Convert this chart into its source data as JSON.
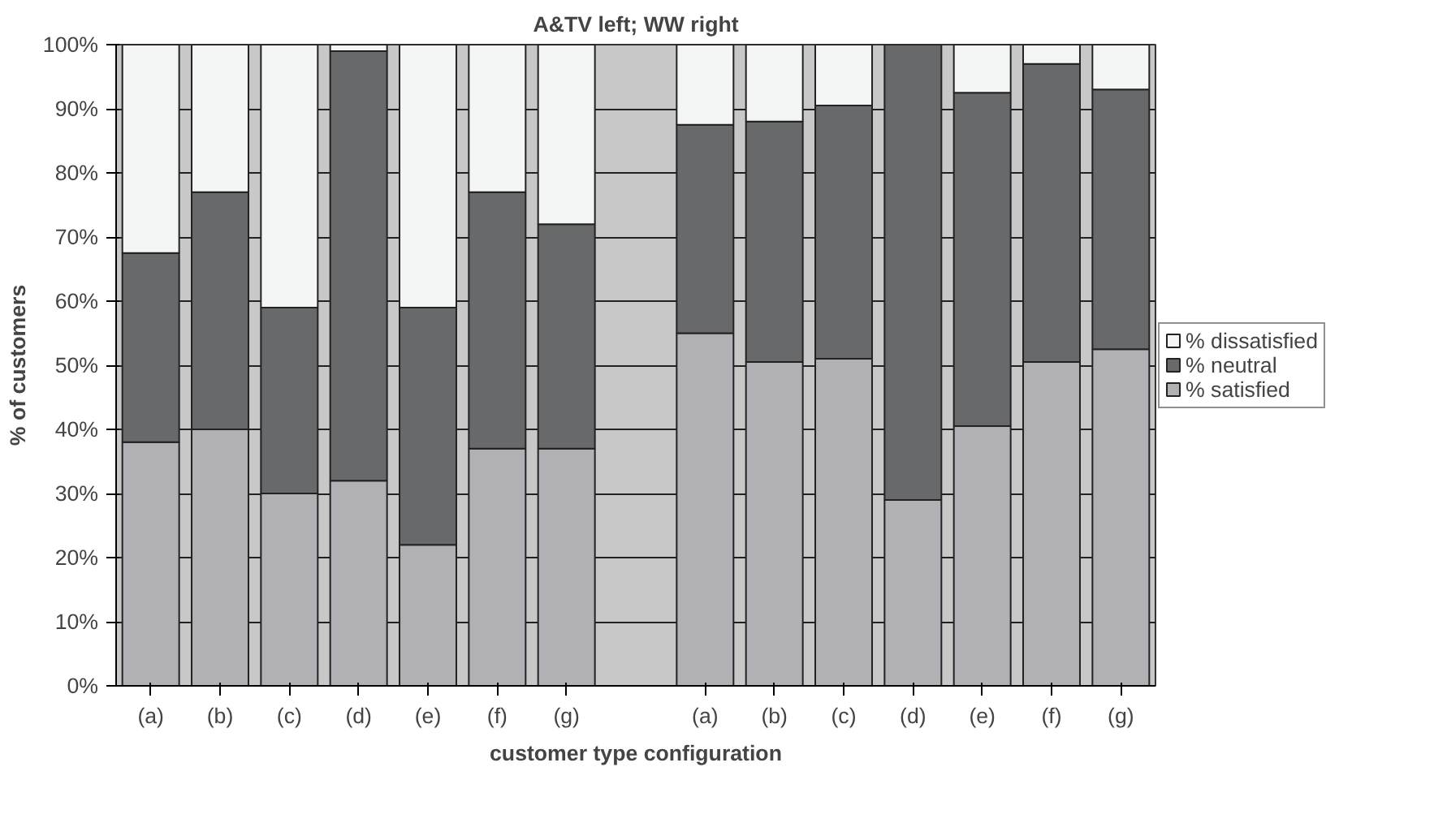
{
  "chart_data": {
    "type": "bar",
    "stacked": true,
    "title": "A&TV left; WW right",
    "xlabel": "customer type configuration",
    "ylabel": "% of customers",
    "categories": [
      "(a)",
      "(b)",
      "(c)",
      "(d)",
      "(e)",
      "(f)",
      "(g)",
      null,
      "(a)",
      "(b)",
      "(c)",
      "(d)",
      "(e)",
      "(f)",
      "(g)"
    ],
    "series": [
      {
        "name": "% satisfied",
        "color": "#b1b1b5",
        "values": [
          38,
          40,
          30,
          32,
          22,
          37,
          37,
          null,
          55,
          50.5,
          51,
          29,
          40.5,
          50.5,
          52.5
        ]
      },
      {
        "name": "% neutral",
        "color": "#68696b",
        "values": [
          29.5,
          37,
          29,
          67,
          37,
          40,
          35,
          null,
          32.5,
          37.5,
          39.5,
          71,
          52,
          46.5,
          40.5
        ]
      },
      {
        "name": "% dissatisfied",
        "color": "#f4f6f5",
        "values": [
          32.5,
          23,
          41,
          1,
          41,
          23,
          28,
          null,
          12.5,
          12,
          9.5,
          null,
          7.5,
          3,
          7
        ]
      }
    ],
    "ylim": [
      0,
      100
    ],
    "yticks": [
      {
        "value": 0,
        "label": "0%"
      },
      {
        "value": 10,
        "label": "10%"
      },
      {
        "value": 20,
        "label": "20%"
      },
      {
        "value": 30,
        "label": "30%"
      },
      {
        "value": 40,
        "label": "40%"
      },
      {
        "value": 50,
        "label": "50%"
      },
      {
        "value": 60,
        "label": "60%"
      },
      {
        "value": 70,
        "label": "70%"
      },
      {
        "value": 80,
        "label": "80%"
      },
      {
        "value": 90,
        "label": "90%"
      },
      {
        "value": 100,
        "label": "100%"
      }
    ],
    "grid": "y",
    "legend": "right"
  }
}
